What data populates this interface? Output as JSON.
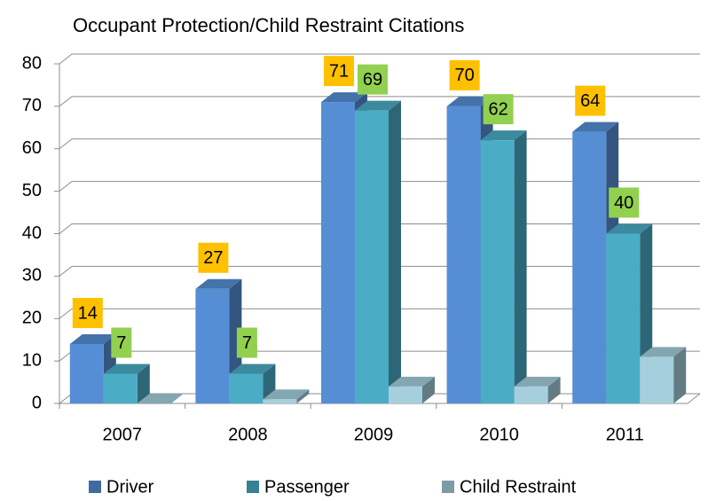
{
  "chart_data": {
    "type": "bar3d",
    "title": "Occupant Protection/Child Restraint Citations",
    "categories": [
      "2007",
      "2008",
      "2009",
      "2010",
      "2011"
    ],
    "series": [
      {
        "name": "Driver",
        "color": "#558ed5",
        "values": [
          14,
          27,
          71,
          70,
          64
        ],
        "data_labels": true,
        "label_color": "#ffc000"
      },
      {
        "name": "Passenger",
        "color": "#4bacc6",
        "values": [
          7,
          7,
          69,
          62,
          40
        ],
        "data_labels": true,
        "label_color": "#92d050"
      },
      {
        "name": "Child Restraint",
        "color": "#a5cfdc",
        "values": [
          0,
          1,
          4,
          4,
          11
        ],
        "data_labels": false
      }
    ],
    "ylim": [
      0,
      80
    ],
    "yticks": [
      0,
      10,
      20,
      30,
      40,
      50,
      60,
      70,
      80
    ],
    "grid": true,
    "legend_position": "bottom"
  }
}
